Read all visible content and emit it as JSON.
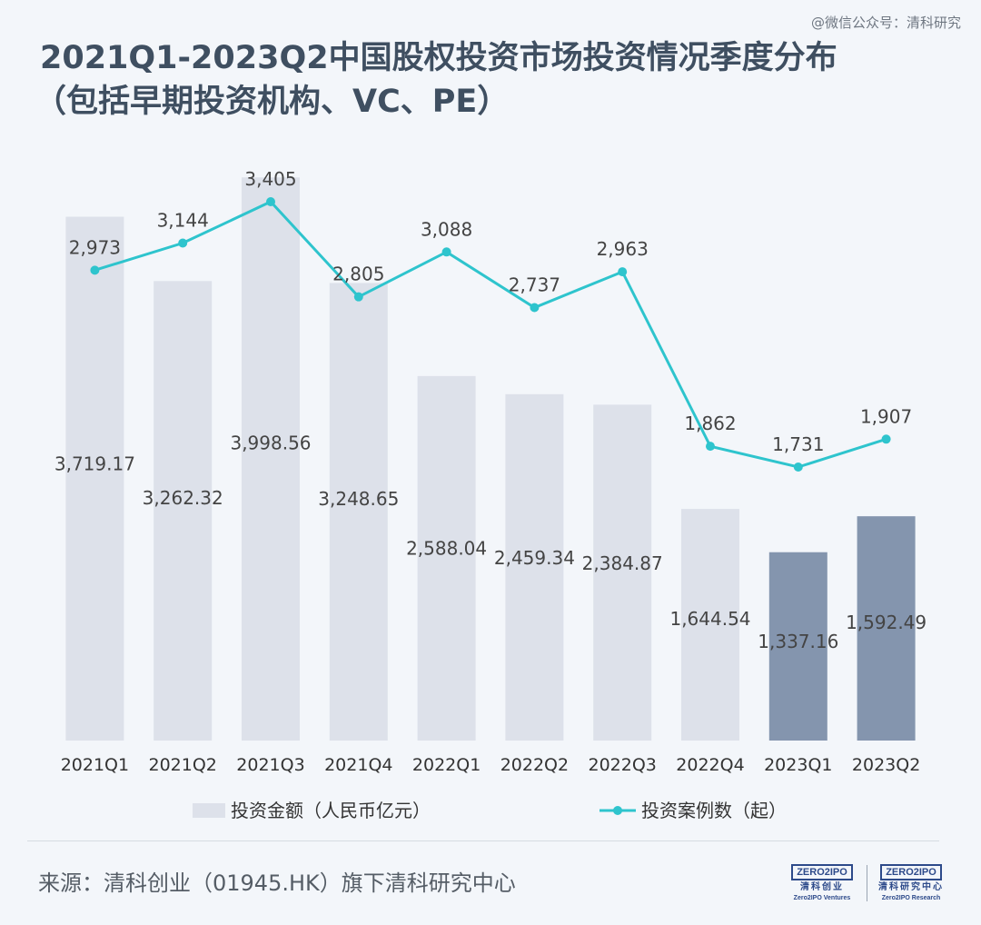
{
  "watermark": "@微信公众号：清科研究",
  "title_line1": "2021Q1-2023Q2中国股权投资市场投资情况季度分布",
  "title_line2": "（包括早期投资机构、VC、PE）",
  "source": "来源：清科创业（01945.HK）旗下清科研究中心",
  "logos": [
    {
      "mark": "ZERO2IPO",
      "cn": "清科创业",
      "en": "Zero2IPO Ventures"
    },
    {
      "mark": "ZERO2IPO",
      "cn": "清科研究中心",
      "en": "Zero2IPO Research"
    }
  ],
  "colors": {
    "bar": "#dde1ea",
    "bar_highlight": "#8495ae",
    "line": "#2ec4cd",
    "label": "#444444"
  },
  "chart_data": {
    "type": "bar",
    "categories": [
      "2021Q1",
      "2021Q2",
      "2021Q3",
      "2021Q4",
      "2022Q1",
      "2022Q2",
      "2022Q3",
      "2022Q4",
      "2023Q1",
      "2023Q2"
    ],
    "series": [
      {
        "name": "投资金额（人民币亿元）",
        "type": "bar",
        "values": [
          3719.17,
          3262.32,
          3998.56,
          3248.65,
          2588.04,
          2459.34,
          2384.87,
          1644.54,
          1337.16,
          1592.49
        ],
        "labels": [
          "3,719.17",
          "3,262.32",
          "3,998.56",
          "3,248.65",
          "2,588.04",
          "2,459.34",
          "2,384.87",
          "1,644.54",
          "1,337.16",
          "1,592.49"
        ],
        "highlight": [
          false,
          false,
          false,
          false,
          false,
          false,
          false,
          false,
          true,
          true
        ]
      },
      {
        "name": "投资案例数（起）",
        "type": "line",
        "values": [
          2973,
          3144,
          3405,
          2805,
          3088,
          2737,
          2963,
          1862,
          1731,
          1907
        ],
        "labels": [
          "2,973",
          "3,144",
          "3,405",
          "2,805",
          "3,088",
          "2,737",
          "2,963",
          "1,862",
          "1,731",
          "1,907"
        ]
      }
    ],
    "legend_position": "bottom",
    "grid": false
  }
}
